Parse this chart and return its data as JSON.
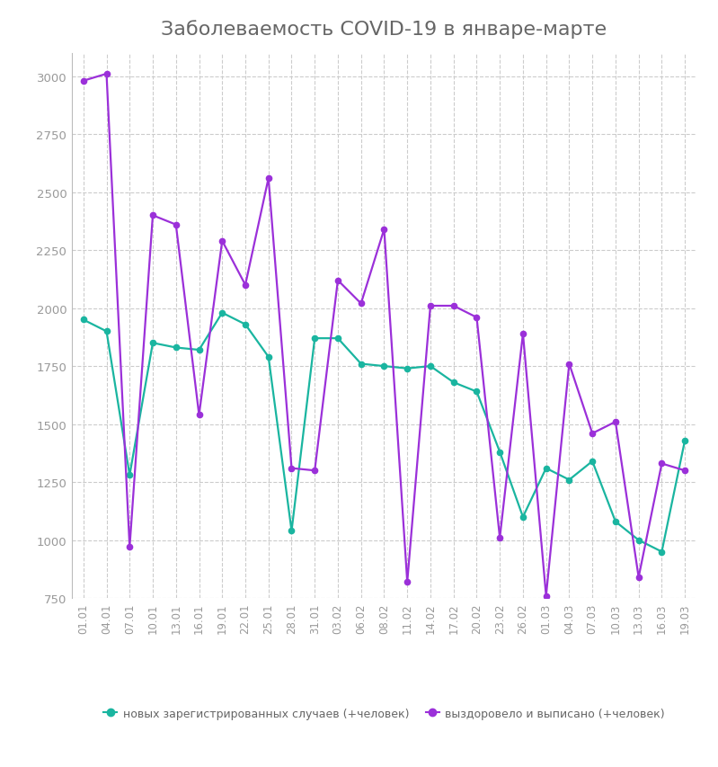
{
  "title": "Заболеваемость COVID-19 в январе-марте",
  "background_color": "#ffffff",
  "grid_color": "#cccccc",
  "teal_color": "#1ab5a0",
  "purple_color": "#9b30d9",
  "legend_teal": "новых зарегистрированных случаев (+человек)",
  "legend_purple": "выздоровело и выписано (+человек)",
  "x_labels": [
    "01.01",
    "04.01",
    "07.01",
    "10.01",
    "13.01",
    "16.01",
    "19.01",
    "22.01",
    "25.01",
    "28.01",
    "31.01",
    "03.02",
    "06.02",
    "08.02",
    "11.02",
    "14.02",
    "17.02",
    "20.02",
    "23.02",
    "26.02",
    "01.03",
    "04.03",
    "07.03",
    "10.03",
    "13.03",
    "16.03",
    "19.03"
  ],
  "teal_values": [
    1950,
    1900,
    1280,
    1850,
    1830,
    1820,
    1980,
    1930,
    1790,
    1040,
    1870,
    1870,
    1760,
    1750,
    1740,
    1750,
    1680,
    1640,
    1380,
    1100,
    1310,
    1260,
    1340,
    1080,
    1000,
    950,
    1430
  ],
  "purple_values": [
    2980,
    3010,
    970,
    2400,
    2360,
    1540,
    2290,
    2100,
    2560,
    1310,
    1300,
    2120,
    2020,
    2340,
    820,
    2010,
    2010,
    1960,
    1010,
    1890,
    760,
    1760,
    1460,
    1510,
    840,
    1330,
    1300
  ],
  "ylim_min": 750,
  "ylim_max": 3100,
  "yticks": [
    750,
    1000,
    1250,
    1500,
    1750,
    2000,
    2250,
    2500,
    2750,
    3000
  ]
}
